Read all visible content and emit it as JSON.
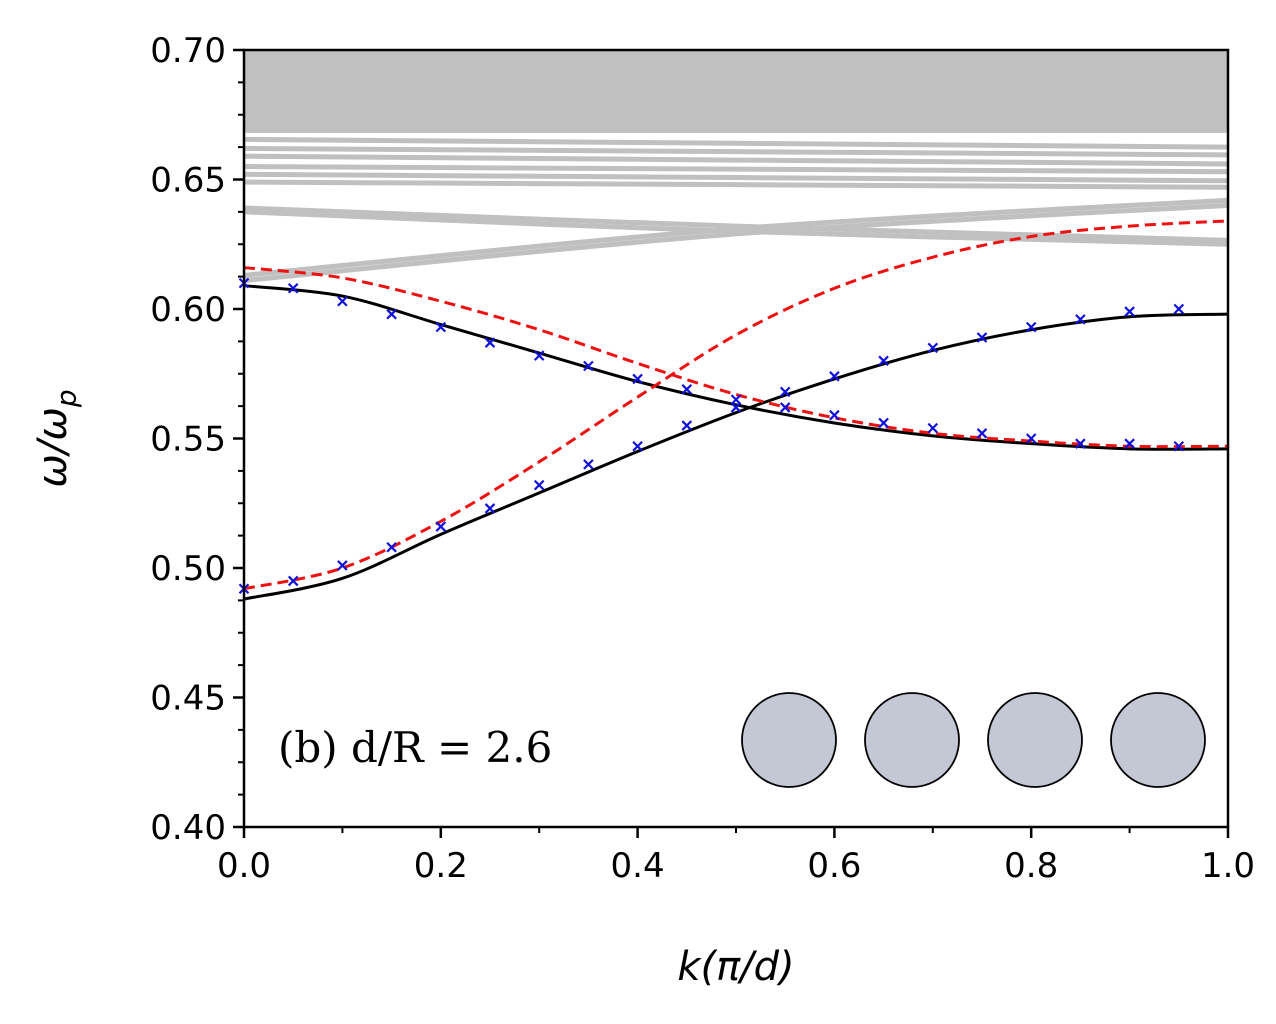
{
  "chart_data": {
    "type": "line",
    "xlabel": "k(π/d)",
    "ylabel": "ω/ω",
    "ylabel_sub": "p",
    "xlim": [
      0.0,
      1.0
    ],
    "ylim": [
      0.4,
      0.7
    ],
    "xticks": [
      0.0,
      0.2,
      0.4,
      0.6,
      0.8,
      1.0
    ],
    "xtick_labels": [
      "0.0",
      "0.2",
      "0.4",
      "0.6",
      "0.8",
      "1.0"
    ],
    "yticks": [
      0.4,
      0.45,
      0.5,
      0.55,
      0.6,
      0.65,
      0.7
    ],
    "ytick_labels": [
      "0.40",
      "0.45",
      "0.50",
      "0.55",
      "0.60",
      "0.65",
      "0.70"
    ],
    "annotation": "(b) d/R = 2.6",
    "inset": {
      "shape": "circle",
      "count": 4,
      "fill": "#c3c8d4",
      "stroke": "#000000"
    },
    "colors": {
      "black": "#000000",
      "red_dashed": "#ee1111",
      "markers": "#1010dd",
      "continuum": "#c0c0c0"
    },
    "series": [
      {
        "name": "solid-upper",
        "style": "solid",
        "color": "#000000",
        "x": [
          0.0,
          0.1,
          0.2,
          0.3,
          0.4,
          0.5,
          0.6,
          0.7,
          0.8,
          0.9,
          1.0
        ],
        "y": [
          0.609,
          0.605,
          0.594,
          0.583,
          0.572,
          0.563,
          0.556,
          0.551,
          0.548,
          0.546,
          0.546
        ]
      },
      {
        "name": "solid-lower",
        "style": "solid",
        "color": "#000000",
        "x": [
          0.0,
          0.1,
          0.2,
          0.3,
          0.4,
          0.5,
          0.6,
          0.7,
          0.8,
          0.9,
          1.0
        ],
        "y": [
          0.488,
          0.496,
          0.513,
          0.529,
          0.545,
          0.56,
          0.573,
          0.584,
          0.592,
          0.597,
          0.598
        ]
      },
      {
        "name": "dashed-upper",
        "style": "dashed",
        "color": "#ee1111",
        "x": [
          0.0,
          0.1,
          0.2,
          0.3,
          0.4,
          0.5,
          0.6,
          0.7,
          0.8,
          0.9,
          1.0
        ],
        "y": [
          0.616,
          0.612,
          0.603,
          0.592,
          0.579,
          0.567,
          0.558,
          0.552,
          0.549,
          0.547,
          0.547
        ]
      },
      {
        "name": "dashed-lower",
        "style": "dashed",
        "color": "#ee1111",
        "x": [
          0.0,
          0.1,
          0.2,
          0.3,
          0.4,
          0.5,
          0.6,
          0.7,
          0.8,
          0.9,
          1.0
        ],
        "y": [
          0.492,
          0.5,
          0.518,
          0.541,
          0.566,
          0.59,
          0.608,
          0.62,
          0.628,
          0.632,
          0.634
        ]
      },
      {
        "name": "crosses-branch-1",
        "style": "markers",
        "marker": "x",
        "color": "#1010dd",
        "x": [
          0.0,
          0.05,
          0.1,
          0.15,
          0.2,
          0.25,
          0.3,
          0.35,
          0.4,
          0.45,
          0.5,
          0.55,
          0.6,
          0.65,
          0.7,
          0.75,
          0.8,
          0.85,
          0.9,
          0.95
        ],
        "y": [
          0.61,
          0.608,
          0.603,
          0.598,
          0.593,
          0.587,
          0.582,
          0.578,
          0.573,
          0.569,
          0.565,
          0.562,
          0.559,
          0.556,
          0.554,
          0.552,
          0.55,
          0.548,
          0.548,
          0.547
        ]
      },
      {
        "name": "crosses-branch-2",
        "style": "markers",
        "marker": "x",
        "color": "#1010dd",
        "x": [
          0.0,
          0.05,
          0.1,
          0.15,
          0.2,
          0.25,
          0.3,
          0.35,
          0.4,
          0.45,
          0.5,
          0.55,
          0.6,
          0.65,
          0.7,
          0.75,
          0.8,
          0.85,
          0.9,
          0.95
        ],
        "y": [
          0.492,
          0.495,
          0.501,
          0.508,
          0.516,
          0.523,
          0.532,
          0.54,
          0.547,
          0.555,
          0.562,
          0.568,
          0.574,
          0.58,
          0.585,
          0.589,
          0.593,
          0.596,
          0.599,
          0.6
        ]
      }
    ],
    "continuum": {
      "color": "#c0c0c0",
      "solid_band_y": [
        0.668,
        0.7
      ],
      "bands": [
        {
          "x": [
            0.0,
            1.0
          ],
          "y": [
            0.6655,
            0.6625
          ]
        },
        {
          "x": [
            0.0,
            1.0
          ],
          "y": [
            0.662,
            0.6595
          ]
        },
        {
          "x": [
            0.0,
            1.0
          ],
          "y": [
            0.659,
            0.656
          ]
        },
        {
          "x": [
            0.0,
            1.0
          ],
          "y": [
            0.655,
            0.653
          ]
        },
        {
          "x": [
            0.0,
            1.0
          ],
          "y": [
            0.652,
            0.6495
          ]
        },
        {
          "x": [
            0.0,
            1.0
          ],
          "y": [
            0.649,
            0.647
          ]
        },
        {
          "x": [
            0.0,
            0.5,
            1.0
          ],
          "y": [
            0.639,
            0.632,
            0.6265
          ]
        },
        {
          "x": [
            0.0,
            0.5,
            1.0
          ],
          "y": [
            0.6375,
            0.63,
            0.625
          ]
        },
        {
          "x": [
            0.0,
            0.5,
            1.0
          ],
          "y": [
            0.613,
            0.631,
            0.642
          ]
        },
        {
          "x": [
            0.0,
            0.5,
            1.0
          ],
          "y": [
            0.611,
            0.629,
            0.64
          ]
        }
      ]
    }
  }
}
